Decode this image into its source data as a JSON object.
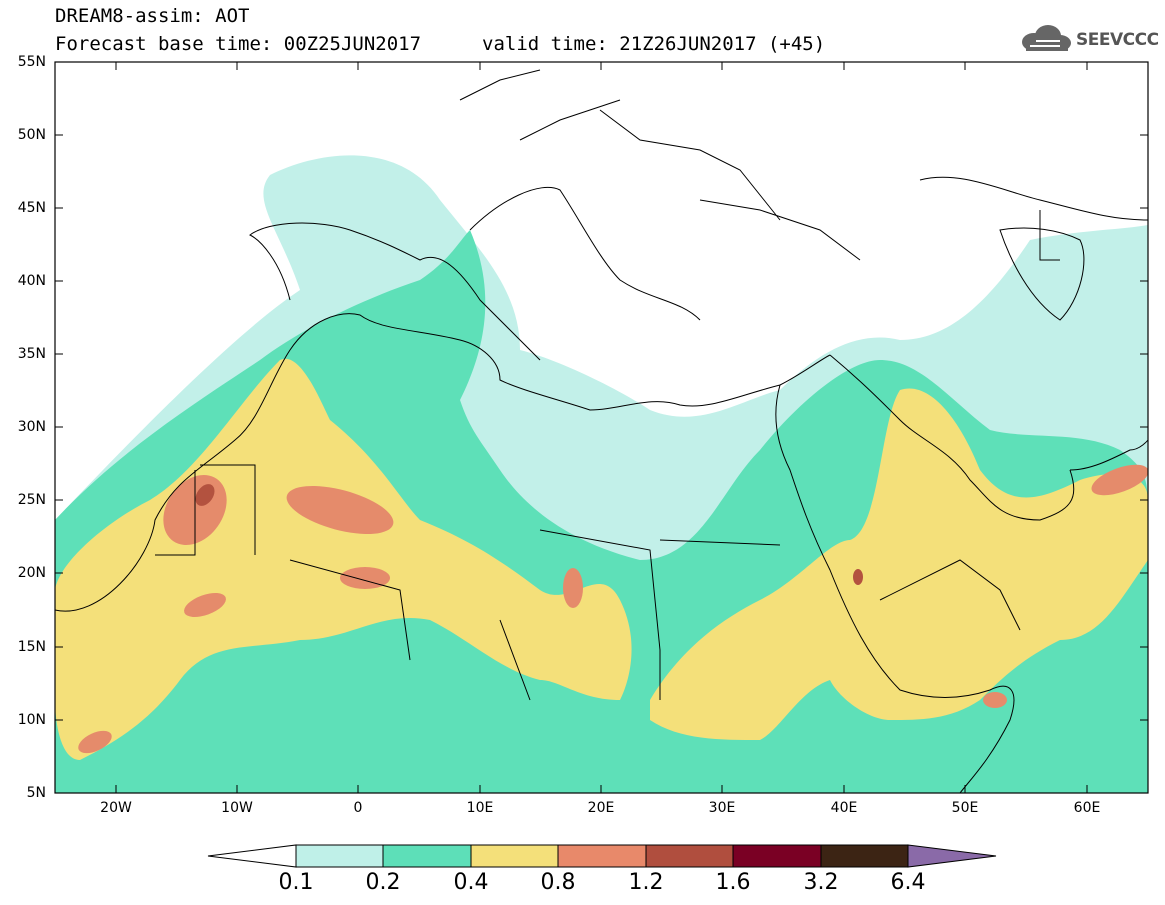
{
  "header": {
    "title": "DREAM8-assim: AOT",
    "base_time": "Forecast base time: 00Z25JUN2017",
    "valid_time": "valid time: 21Z26JUN2017 (+45)",
    "logo_text": "SEEVCCC"
  },
  "map": {
    "lat_labels": [
      "55N",
      "50N",
      "45N",
      "40N",
      "35N",
      "30N",
      "25N",
      "20N",
      "15N",
      "10N",
      "5N"
    ],
    "lon_labels": [
      "20W",
      "10W",
      "0",
      "10E",
      "20E",
      "30E",
      "40E",
      "50E",
      "60E"
    ],
    "lon_range": [
      -25,
      65
    ],
    "lat_range": [
      5,
      55
    ]
  },
  "legend": {
    "levels": [
      "0.1",
      "0.2",
      "0.4",
      "0.8",
      "1.2",
      "1.6",
      "3.2",
      "6.4"
    ],
    "colors": [
      "#bff0e8",
      "#5ddfb8",
      "#f4e07a",
      "#e8896a",
      "#b04e3e",
      "#7a0024",
      "#3c2414",
      "#8a6aa8"
    ]
  },
  "colors": {
    "c01": "#c2f0e9",
    "c02": "#5ee0b8",
    "c04": "#f4e07a",
    "c08": "#e58b6b",
    "c12": "#b3523f"
  }
}
